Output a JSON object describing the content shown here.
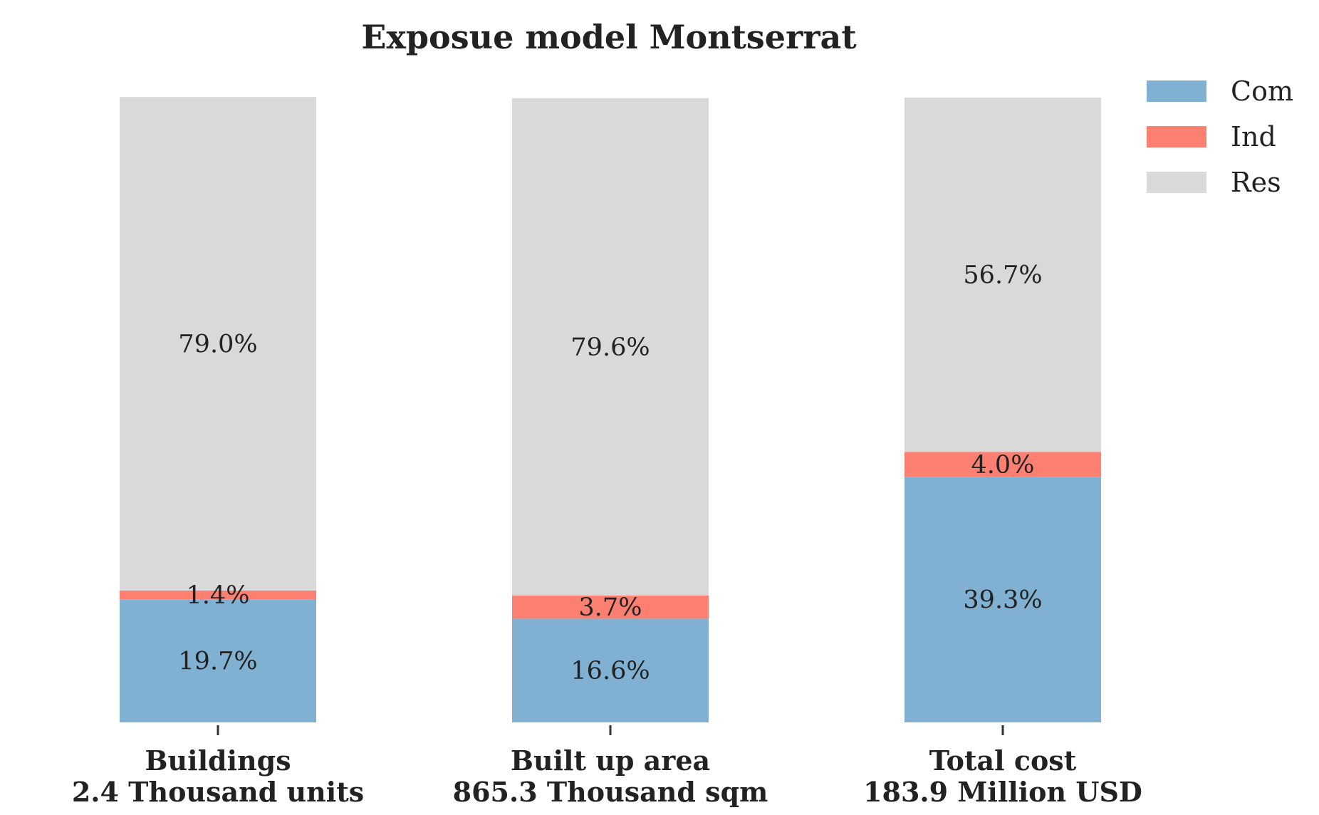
{
  "chart_data": {
    "type": "bar",
    "stacked": true,
    "normalized_percent": true,
    "title": "Exposue model Montserrat",
    "categories": [
      [
        "Buildings",
        "2.4 Thousand units"
      ],
      [
        "Built up area",
        "865.3 Thousand sqm"
      ],
      [
        "Total cost",
        "183.9 Million USD"
      ]
    ],
    "series": [
      {
        "name": "Com",
        "color": "#80b1d3",
        "values": [
          19.7,
          16.6,
          39.3
        ],
        "labels": [
          "19.7%",
          "16.6%",
          "39.3%"
        ]
      },
      {
        "name": "Ind",
        "color": "#fb8072",
        "values": [
          1.4,
          3.7,
          4.0
        ],
        "labels": [
          "1.4%",
          "3.7%",
          "4.0%"
        ]
      },
      {
        "name": "Res",
        "color": "#d9d9d9",
        "values": [
          79.0,
          79.6,
          56.7
        ],
        "labels": [
          "79.0%",
          "79.6%",
          "56.7%"
        ]
      }
    ],
    "ylim": [
      0,
      100
    ],
    "legend_position": "top-right",
    "grid": false,
    "y_axis_visible": false
  }
}
